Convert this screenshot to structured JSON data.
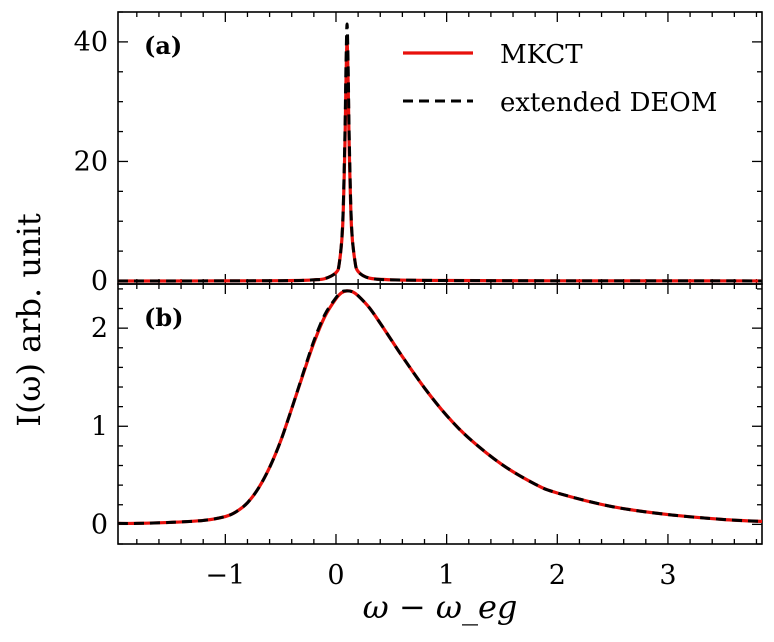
{
  "chart_data": [
    {
      "type": "line",
      "panel_label": "(a)",
      "xlabel": "",
      "ylabel": "",
      "xlim": [
        -1.97,
        3.85
      ],
      "ylim": [
        -0.5,
        45
      ],
      "xticks": [
        -1,
        0,
        1,
        2,
        3
      ],
      "yticks": [
        0,
        20,
        40
      ],
      "ytick_labels": [
        "0",
        "20",
        "40"
      ],
      "series": [
        {
          "name": "MKCT",
          "color": "#e8100c",
          "style": "solid",
          "x": [
            -1.97,
            -1.5,
            -1.0,
            -0.5,
            -0.3,
            -0.2,
            -0.1,
            0.0,
            0.03,
            0.06,
            0.08,
            0.09,
            0.1,
            0.11,
            0.12,
            0.14,
            0.17,
            0.2,
            0.3,
            0.5,
            1.0,
            2.0,
            3.0,
            3.85
          ],
          "y": [
            0.0,
            0.0,
            0.02,
            0.05,
            0.1,
            0.2,
            0.4,
            1.4,
            3.0,
            9.0,
            22.0,
            33.0,
            40.0,
            33.0,
            22.0,
            9.0,
            3.5,
            1.6,
            0.5,
            0.2,
            0.08,
            0.03,
            0.02,
            0.01
          ]
        },
        {
          "name": "extended DEOM",
          "color": "#000000",
          "style": "dashed",
          "x": [
            -1.97,
            -1.5,
            -1.0,
            -0.5,
            -0.3,
            -0.2,
            -0.1,
            0.0,
            0.03,
            0.06,
            0.08,
            0.09,
            0.1,
            0.11,
            0.12,
            0.14,
            0.17,
            0.2,
            0.3,
            0.5,
            1.0,
            2.0,
            3.0,
            3.85
          ],
          "y": [
            0.0,
            0.0,
            0.02,
            0.05,
            0.1,
            0.2,
            0.4,
            1.4,
            3.0,
            9.5,
            24.0,
            36.0,
            43.0,
            36.0,
            24.0,
            9.5,
            3.5,
            1.6,
            0.5,
            0.2,
            0.08,
            0.03,
            0.02,
            0.01
          ]
        }
      ],
      "legend": [
        "MKCT",
        "extended DEOM"
      ],
      "legend_position": "top-right"
    },
    {
      "type": "line",
      "panel_label": "(b)",
      "xlabel": "ω − ω_eg",
      "ylabel": "I(ω) arb. unit",
      "xlim": [
        -1.97,
        3.85
      ],
      "ylim": [
        -0.2,
        2.45
      ],
      "xticks": [
        -1,
        0,
        1,
        2,
        3
      ],
      "xtick_labels": [
        "−1",
        "0",
        "1",
        "2",
        "3"
      ],
      "yticks": [
        0,
        1,
        2
      ],
      "ytick_labels": [
        "0",
        "1",
        "2"
      ],
      "series": [
        {
          "name": "MKCT",
          "color": "#e8100c",
          "style": "solid",
          "x": [
            -1.97,
            -1.8,
            -1.5,
            -1.2,
            -1.0,
            -0.9,
            -0.8,
            -0.7,
            -0.6,
            -0.5,
            -0.4,
            -0.3,
            -0.2,
            -0.1,
            0.0,
            0.05,
            0.1,
            0.15,
            0.2,
            0.3,
            0.4,
            0.5,
            0.6,
            0.8,
            1.0,
            1.2,
            1.5,
            1.8,
            2.0,
            2.5,
            3.0,
            3.5,
            3.85
          ],
          "y": [
            0.01,
            0.01,
            0.02,
            0.04,
            0.08,
            0.13,
            0.22,
            0.37,
            0.58,
            0.85,
            1.18,
            1.52,
            1.85,
            2.12,
            2.3,
            2.36,
            2.38,
            2.37,
            2.33,
            2.21,
            2.05,
            1.88,
            1.71,
            1.39,
            1.11,
            0.88,
            0.61,
            0.41,
            0.32,
            0.18,
            0.1,
            0.05,
            0.03
          ]
        },
        {
          "name": "extended DEOM",
          "color": "#000000",
          "style": "dashed",
          "x": [
            -1.97,
            -1.8,
            -1.5,
            -1.2,
            -1.0,
            -0.9,
            -0.8,
            -0.7,
            -0.6,
            -0.5,
            -0.4,
            -0.3,
            -0.2,
            -0.1,
            0.0,
            0.05,
            0.1,
            0.15,
            0.2,
            0.3,
            0.4,
            0.5,
            0.6,
            0.8,
            1.0,
            1.2,
            1.5,
            1.8,
            2.0,
            2.5,
            3.0,
            3.5,
            3.85
          ],
          "y": [
            0.01,
            0.01,
            0.02,
            0.04,
            0.08,
            0.13,
            0.22,
            0.37,
            0.58,
            0.85,
            1.18,
            1.53,
            1.87,
            2.14,
            2.31,
            2.37,
            2.38,
            2.37,
            2.33,
            2.21,
            2.05,
            1.88,
            1.71,
            1.39,
            1.11,
            0.88,
            0.61,
            0.41,
            0.32,
            0.18,
            0.1,
            0.05,
            0.03
          ]
        }
      ]
    }
  ],
  "colors": {
    "mkct": "#e8100c",
    "deom": "#000000"
  }
}
